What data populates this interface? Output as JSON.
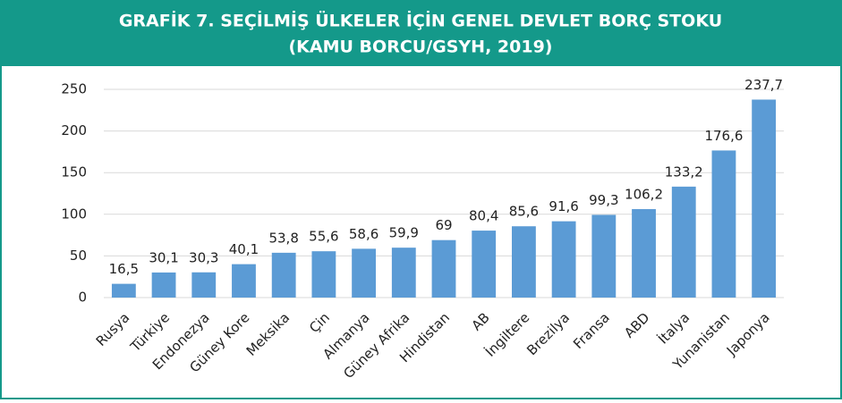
{
  "chart_data": {
    "type": "bar",
    "title": "GRAFİK 7. SEÇİLMİŞ ÜLKELER İÇİN GENEL DEVLET BORÇ STOKU",
    "subtitle": "(KAMU BORCU/GSYH, 2019)",
    "categories": [
      "Rusya",
      "Türkiye",
      "Endonezya",
      "Güney Kore",
      "Meksika",
      "Çin",
      "Almanya",
      "Güney Afrika",
      "Hindistan",
      "AB",
      "İngiltere",
      "Brezilya",
      "Fransa",
      "ABD",
      "İtalya",
      "Yunanistan",
      "Japonya"
    ],
    "values": [
      16.5,
      30.1,
      30.3,
      40.1,
      53.8,
      55.6,
      58.6,
      59.9,
      69,
      80.4,
      85.6,
      91.6,
      99.3,
      106.2,
      133.2,
      176.6,
      237.7
    ],
    "value_labels": [
      "16,5",
      "30,1",
      "30,3",
      "40,1",
      "53,8",
      "55,6",
      "58,6",
      "59,9",
      "69",
      "80,4",
      "85,6",
      "91,6",
      "99,3",
      "106,2",
      "133,2",
      "176,6",
      "237,7"
    ],
    "color": "#5b9bd5",
    "ylim": [
      0,
      250
    ],
    "yticks": [
      0,
      50,
      100,
      150,
      200,
      250
    ],
    "grid": true
  }
}
